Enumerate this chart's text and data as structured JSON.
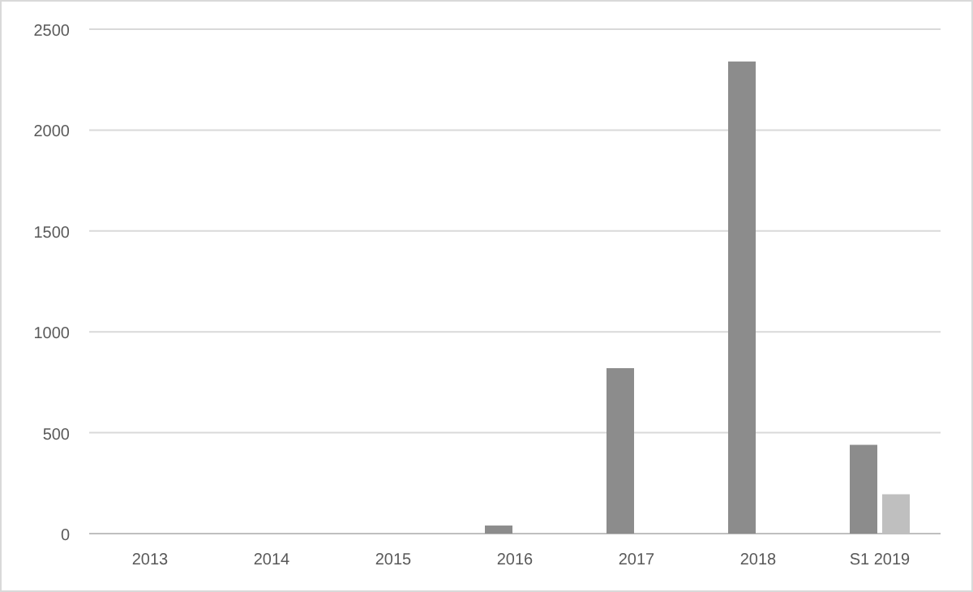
{
  "chart_data": {
    "type": "bar",
    "categories": [
      "2013",
      "2014",
      "2015",
      "2016",
      "2017",
      "2018",
      "S1 2019"
    ],
    "series": [
      {
        "color": "#8c8c8c",
        "values": [
          0,
          0,
          0,
          40,
          820,
          2340,
          440
        ]
      },
      {
        "color": "#bfbfbf",
        "values": [
          0,
          0,
          0,
          0,
          0,
          0,
          195
        ]
      }
    ],
    "ylim": [
      0,
      2500
    ],
    "yticks": [
      0,
      500,
      1000,
      1500,
      2000,
      2500
    ],
    "grid": "y"
  }
}
